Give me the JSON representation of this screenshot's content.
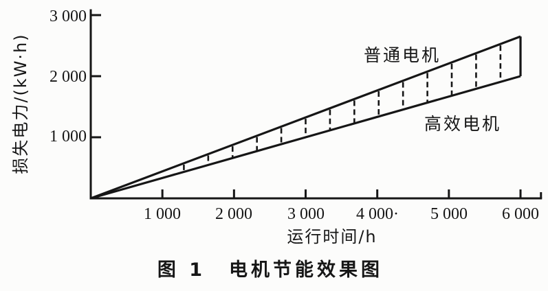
{
  "colors": {
    "ink": "#161616",
    "background": "#fcfcfb"
  },
  "figure": {
    "caption_number": "图 1",
    "caption_title": "电机节能效果图"
  },
  "chart_data": {
    "type": "line",
    "title": "图 1 电机节能效果图",
    "xlabel": "运行时间/h",
    "ylabel": "损失电力/(kW·h)",
    "xlim": [
      0,
      6300
    ],
    "ylim": [
      0,
      3050
    ],
    "grid": false,
    "legend_position": "inline-labels",
    "x_ticks": [
      {
        "value": 1000,
        "label": "1 000"
      },
      {
        "value": 2000,
        "label": "2 000"
      },
      {
        "value": 3000,
        "label": "3 000"
      },
      {
        "value": 4000,
        "label": "4 000·"
      },
      {
        "value": 5000,
        "label": "5 000"
      },
      {
        "value": 6000,
        "label": "6 000"
      }
    ],
    "y_ticks": [
      {
        "value": 1000,
        "label": "1 000"
      },
      {
        "value": 2000,
        "label": "2 000"
      },
      {
        "value": 3000,
        "label": "3 000"
      }
    ],
    "series": [
      {
        "name": "普通电机",
        "x": [
          0,
          6000
        ],
        "values": [
          0,
          2650
        ]
      },
      {
        "name": "高效电机",
        "x": [
          0,
          6000
        ],
        "values": [
          0,
          2000
        ]
      }
    ],
    "band": {
      "dash_x_positions": [
        1300,
        1640,
        1980,
        2320,
        2660,
        3000,
        3340,
        3680,
        4020,
        4360,
        4700,
        5040,
        5380,
        5720
      ],
      "solid_end_x": 6000
    }
  }
}
